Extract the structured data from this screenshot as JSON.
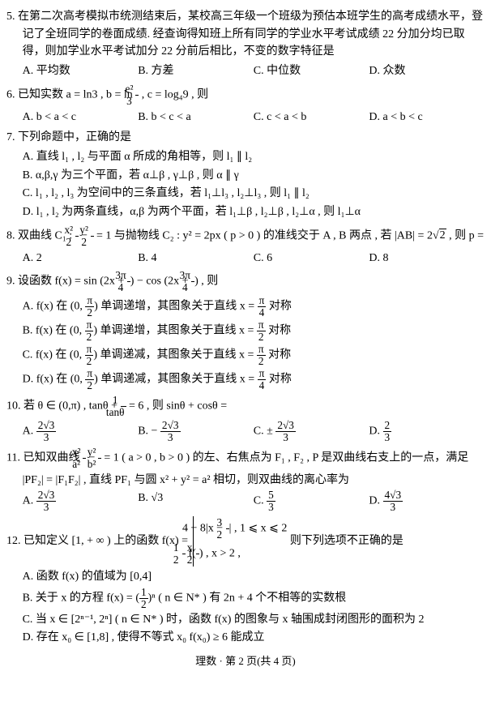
{
  "q5": {
    "num": "5.",
    "stem": "在第二次高考模拟市统测结束后，某校高三年级一个班级为预估本班学生的高考成绩水平，登记了全班同学的卷面成绩. 经查询得知班上所有同学的学业水平考试成绩 22 分加分均已取得，则加学业水平考试加分 22 分前后相比，不变的数字特征是",
    "A": "A. 平均数",
    "B": "B. 方差",
    "C": "C. 中位数",
    "D": "D. 众数"
  },
  "q6": {
    "num": "6.",
    "stem_pre": "已知实数 a = ln3 , b = ln ",
    "stem_frac_n": "e²",
    "stem_frac_d": "3",
    "stem_post": " , c = log₄9 , 则",
    "A": "A.  b < a < c",
    "B": "B.  b < c < a",
    "C": "C.  c < a < b",
    "D": "D. a < b < c"
  },
  "q7": {
    "num": "7.",
    "stem": "下列命题中，正确的是",
    "A": "A. 直线 l₁ , l₂ 与平面 α 所成的角相等，则 l₁ ∥ l₂",
    "B": "B. α,β,γ 为三个平面，若 α⊥β , γ⊥β , 则 α ∥ γ",
    "C": "C. l₁ , l₂ , l₃ 为空间中的三条直线，若 l₁⊥l₃ , l₂⊥l₃ , 则 l₁ ∥ l₂",
    "D": "D. l₁ , l₂ 为两条直线，α,β 为两个平面，若 l₁⊥β , l₂⊥β , l₂⊥α , 则 l₁⊥α"
  },
  "q8": {
    "num": "8.",
    "stem_a": "双曲线 C₁ : ",
    "t1n": "x²",
    "t1d": "2",
    "t2n": "y²",
    "t2d": "2",
    "stem_b": " = 1 与抛物线 C₂ : y² = 2px ( p > 0 ) 的准线交于 A , B 两点 , 若 |AB| = 2",
    "rt": "2",
    "stem_c": " , 则 p =",
    "A": "A.  2",
    "B": "B. 4",
    "C": "C.  6",
    "D": "D.  8"
  },
  "q9": {
    "num": "9.",
    "stem_a": "设函数 f(x) = sin (2x + ",
    "f1n": "3π",
    "f1d": "4",
    "stem_b": ") − cos  (2x + ",
    "f2n": "3π",
    "f2d": "4",
    "stem_c": ") , 则",
    "A_a": "A. f(x) 在 (0, ",
    "A_n": "π",
    "A_d": "2",
    "A_b": ") 单调递增，其图象关于直线 x = ",
    "A_n2": "π",
    "A_d2": "4",
    "A_c": " 对称",
    "B_a": "B. f(x) 在 (0, ",
    "B_b": ") 单调递增，其图象关于直线 x = ",
    "B_c": " 对称",
    "B_n2": "π",
    "B_d2": "2",
    "C_a": "C. f(x) 在 (0, ",
    "C_b": ") 单调递减，其图象关于直线 x = ",
    "C_c": " 对称",
    "C_n2": "π",
    "C_d2": "2",
    "D_a": "D. f(x) 在 (0, ",
    "D_b": ") 单调递减，其图象关于直线 x = ",
    "D_c": " 对称",
    "D_n2": "π",
    "D_d2": "4"
  },
  "q10": {
    "num": "10.",
    "stem_a": "若 θ ∈ (0,π) , tanθ + ",
    "fn": "1",
    "fd": "tanθ",
    "stem_b": " = 6 , 则 sinθ + cosθ =",
    "A_a": "A. ",
    "A_n": "2√3",
    "A_d": "3",
    "B_a": "B.  − ",
    "B_n": "2√3",
    "B_d": "3",
    "C_a": "C.  ± ",
    "C_n": "2√3",
    "C_d": "3",
    "D_a": "D. ",
    "D_n": "2",
    "D_d": "3"
  },
  "q11": {
    "num": "11.",
    "stem_a": "已知双曲线 ",
    "t1n": "x²",
    "t1d": "a²",
    "t2n": "y²",
    "t2d": "b²",
    "stem_b": " = 1 ( a > 0 , b > 0 ) 的左、右焦点为 F₁ , F₂ , P 是双曲线右支上的一点，满足",
    "stem_c": "|PF₂| = |F₁F₂| , 直线 PF₁ 与圆 x² + y² = a² 相切，则双曲线的离心率为",
    "A_a": "A. ",
    "A_n": "2√3",
    "A_d": "3",
    "B": "B. √3",
    "C_a": "C. ",
    "C_n": "5",
    "C_d": "3",
    "D_a": "D. ",
    "D_n": "4√3",
    "D_d": "3"
  },
  "q12": {
    "num": "12.",
    "stem_a": "已知定义 [1, + ∞ ) 上的函数 f(x) = ",
    "c1_a": "4 − 8",
    "c1_b": "x − ",
    "c1_n": "3",
    "c1_d": "2",
    "c1_c": " , 1 ⩽ x ⩽ 2",
    "c2_a": "",
    "c2_n": "1",
    "c2_d": "2",
    "c2_b": " f(",
    "c2_fn": "x",
    "c2_fd": "2",
    "c2_c": ") , x > 2 ,",
    "stem_b": "     则下列选项不正确的是",
    "A": "A. 函数 f(x) 的值域为 [0,4]",
    "B_a": "B. 关于 x 的方程 f(x) = (",
    "B_n": "1",
    "B_d": "2",
    "B_b": ")ⁿ ( n ∈ N* ) 有 2n + 4 个不相等的实数根",
    "C": "C. 当 x ∈ [2ⁿ⁻¹, 2ⁿ] ( n ∈ N* ) 时，函数 f(x) 的图象与 x 轴围成封闭图形的面积为 2",
    "D": "D. 存在 x₀ ∈ [1,8] , 使得不等式 x₀ f(x₀) ≥ 6 能成立"
  },
  "footer": "理数 · 第 2 页(共 4 页)"
}
